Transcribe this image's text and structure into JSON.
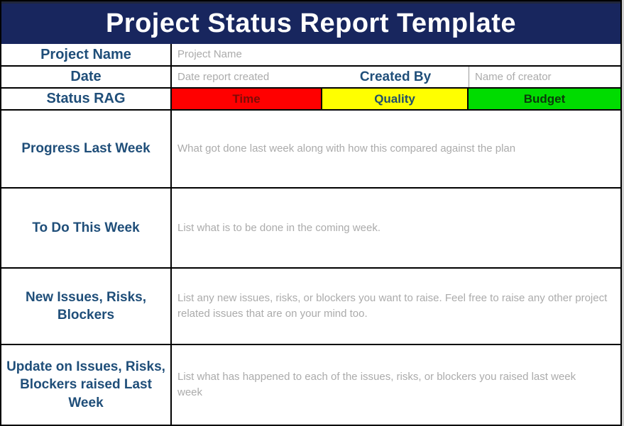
{
  "header": {
    "title": "Project Status Report Template"
  },
  "colors": {
    "header_bg": "#18265E",
    "header_text": "#FFFFFF",
    "label_text": "#1F4E79",
    "placeholder_text": "#ABABAB",
    "border": "#000000",
    "rag": {
      "time_bg": "#FF0000",
      "time_text": "#7F0B06",
      "quality_bg": "#FFFF00",
      "quality_text": "#1F4E6B",
      "budget_bg": "#00DC00",
      "budget_text": "#0B3A0B"
    }
  },
  "meta_rows": {
    "project_name": {
      "label": "Project Name",
      "placeholder": "Project Name"
    },
    "date": {
      "label": "Date",
      "placeholder": "Date report created"
    },
    "created_by": {
      "label": "Created By",
      "placeholder": "Name of creator"
    },
    "status_rag": {
      "label": "Status RAG"
    }
  },
  "rag_options": [
    {
      "label": "Time"
    },
    {
      "label": "Quality"
    },
    {
      "label": "Budget"
    }
  ],
  "sections": [
    {
      "label": "Progress Last Week",
      "placeholder": "What got done last week along with how this compared against the plan"
    },
    {
      "label": "To Do This Week",
      "placeholder": "List what is to be done in the coming week."
    },
    {
      "label": "New Issues, Risks, Blockers",
      "placeholder": "List any new issues, risks, or blockers you want to raise. Feel free to raise any other project related issues that are on your mind too."
    },
    {
      "label": "Update on Issues, Risks, Blockers raised Last Week",
      "placeholder": "List what has happened to each of the issues, risks, or blockers you raised last week\nweek"
    }
  ]
}
